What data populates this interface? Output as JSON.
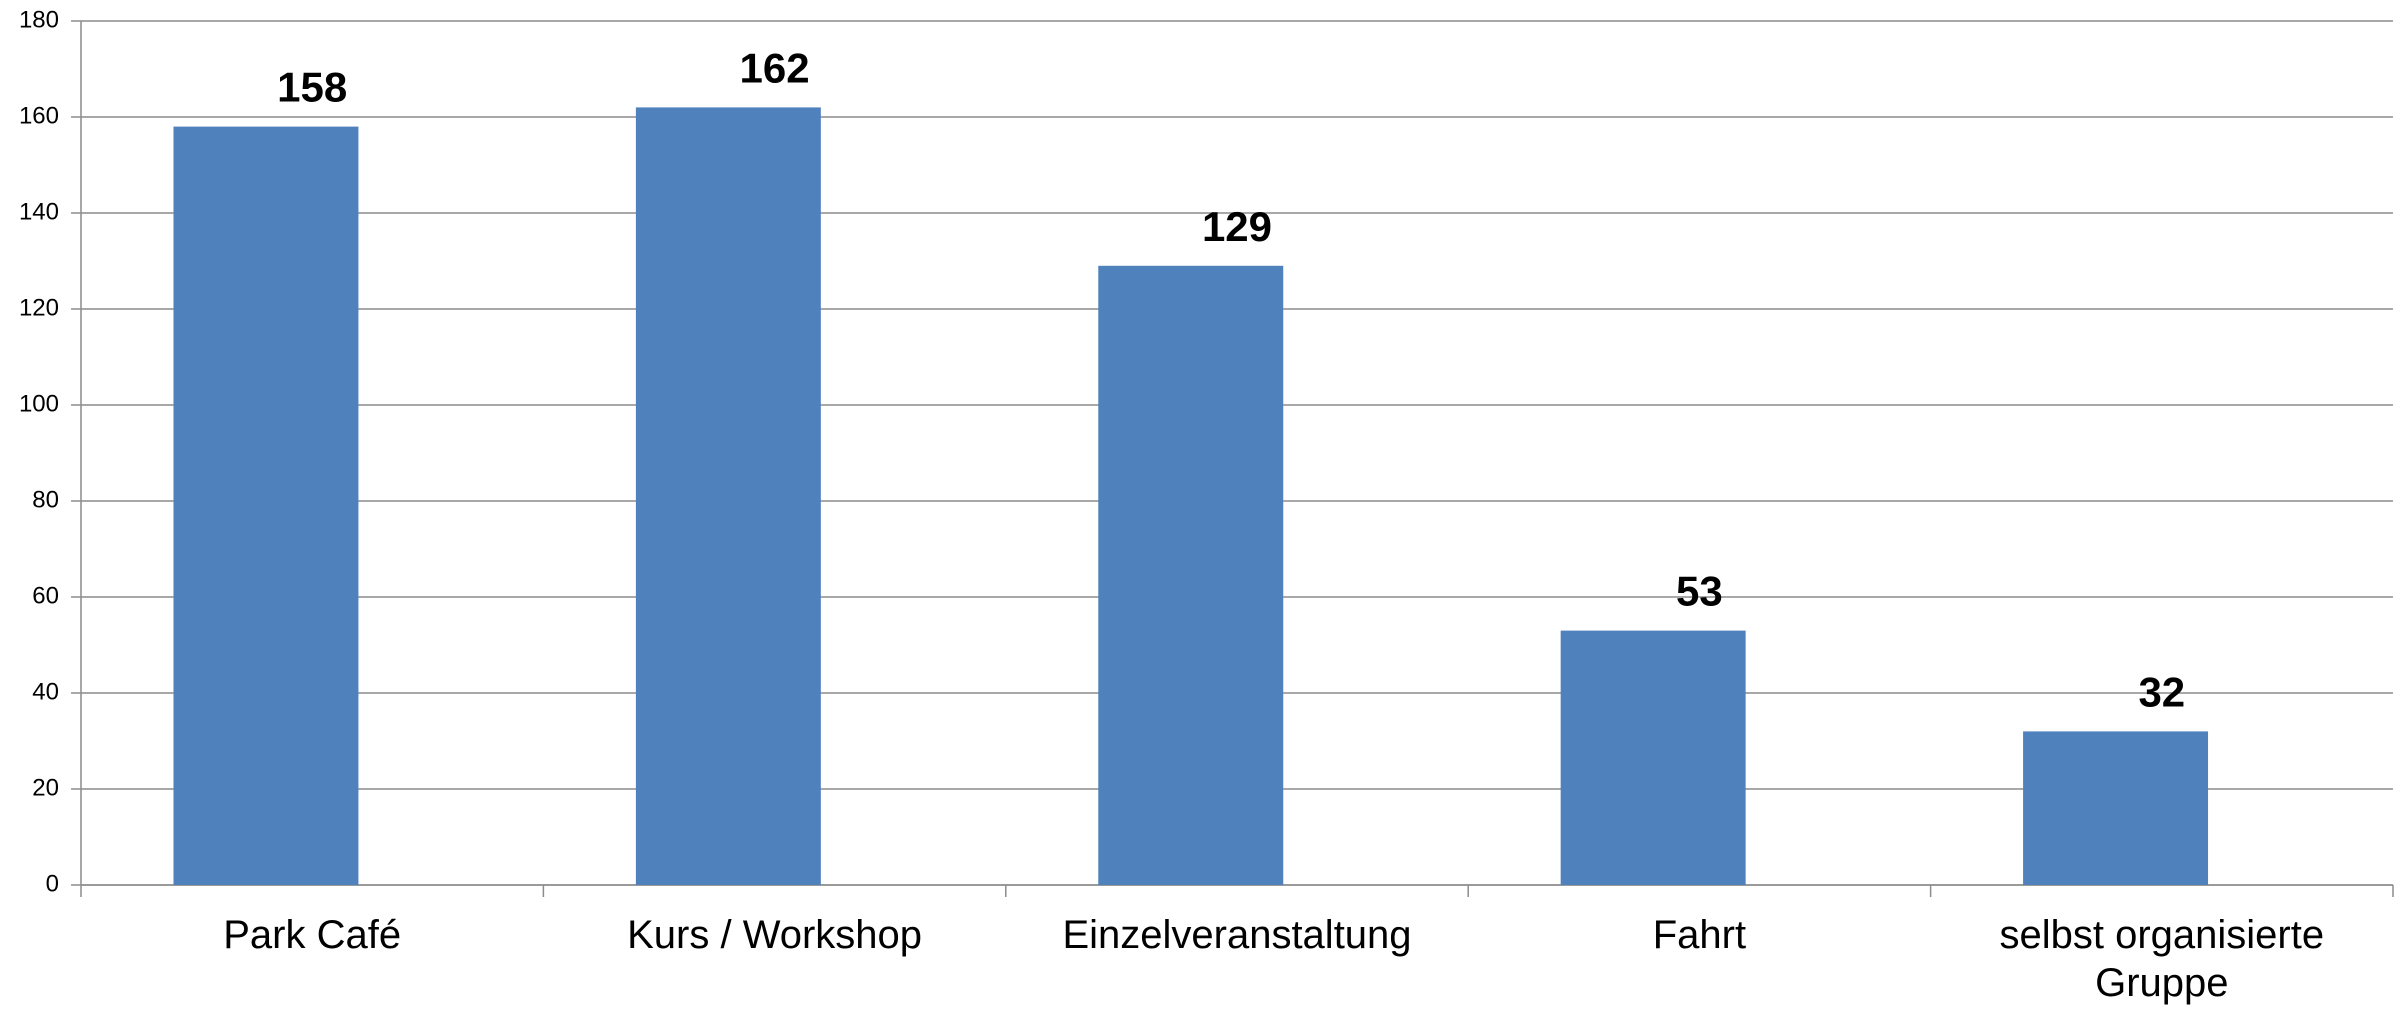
{
  "chart_data": {
    "type": "bar",
    "categories": [
      "Park Café",
      "Kurs / Workshop",
      "Einzelveranstaltung",
      "Fahrt",
      "selbst organisierte Gruppe"
    ],
    "values": [
      158,
      162,
      129,
      53,
      32
    ],
    "color": "#4f81bd",
    "ylim": [
      0,
      180
    ],
    "yticks": [
      0,
      20,
      40,
      60,
      80,
      100,
      120,
      140,
      160,
      180
    ],
    "grid": true
  }
}
